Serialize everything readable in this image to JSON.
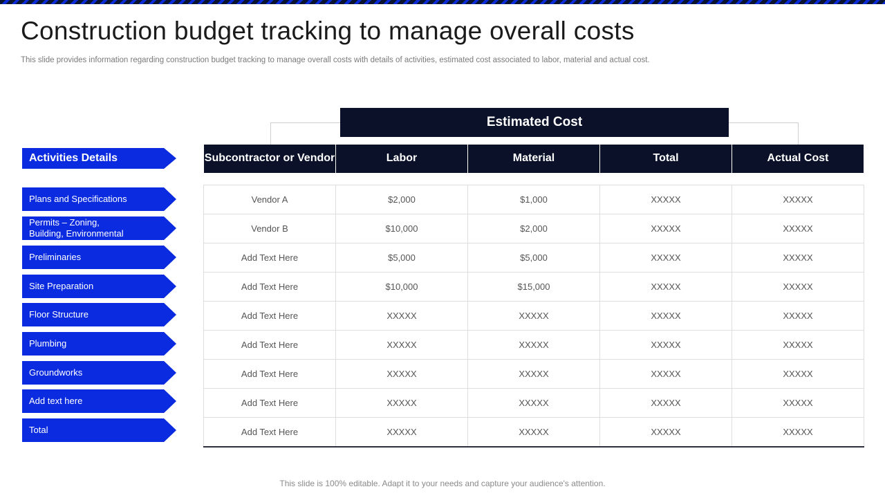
{
  "slide": {
    "title": "Construction budget tracking to manage overall costs",
    "subtitle": "This slide provides information regarding construction budget tracking to manage overall costs with details of activities, estimated cost associated to labor, material and actual cost.",
    "footer": "This slide is 100% editable. Adapt it to your needs and capture your audience's attention.",
    "accent_color": "#0a2be0",
    "header_color": "#0a1128"
  },
  "estimated_cost_label": "Estimated Cost",
  "activities_header": "Activities Details",
  "columns": [
    "Subcontractor or Vendor",
    "Labor",
    "Material",
    "Total",
    "Actual Cost"
  ],
  "activities": [
    "Plans and Specifications",
    "Permits – Zoning, Building, Environmental",
    "Preliminaries",
    "Site Preparation",
    "Floor Structure",
    "Plumbing",
    "Groundworks",
    "Add text here",
    "Total"
  ],
  "rows": [
    [
      "Vendor A",
      "$2,000",
      "$1,000",
      "XXXXX",
      "XXXXX"
    ],
    [
      "Vendor B",
      "$10,000",
      "$2,000",
      "XXXXX",
      "XXXXX"
    ],
    [
      "Add Text Here",
      "$5,000",
      "$5,000",
      "XXXXX",
      "XXXXX"
    ],
    [
      "Add Text Here",
      "$10,000",
      "$15,000",
      "XXXXX",
      "XXXXX"
    ],
    [
      "Add Text Here",
      "XXXXX",
      "XXXXX",
      "XXXXX",
      "XXXXX"
    ],
    [
      "Add Text Here",
      "XXXXX",
      "XXXXX",
      "XXXXX",
      "XXXXX"
    ],
    [
      "Add Text Here",
      "XXXXX",
      "XXXXX",
      "XXXXX",
      "XXXXX"
    ],
    [
      "Add Text Here",
      "XXXXX",
      "XXXXX",
      "XXXXX",
      "XXXXX"
    ],
    [
      "Add Text Here",
      "XXXXX",
      "XXXXX",
      "XXXXX",
      "XXXXX"
    ]
  ]
}
